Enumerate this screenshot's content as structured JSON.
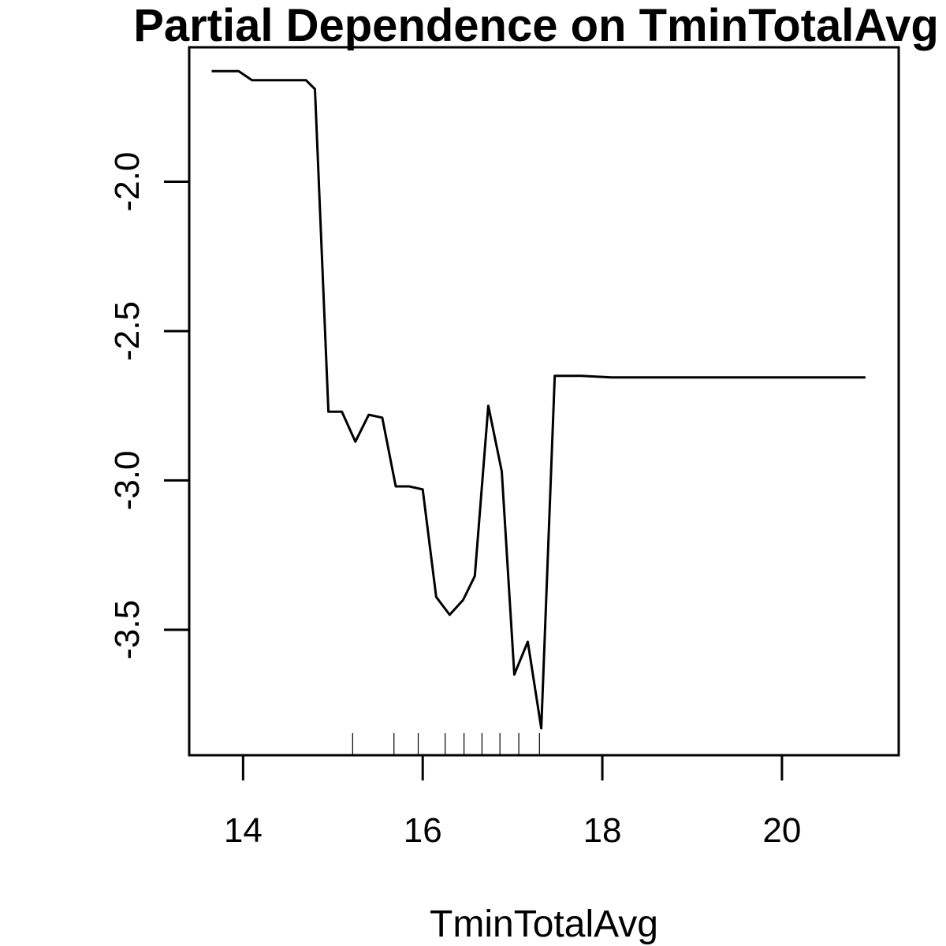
{
  "chart_data": {
    "type": "line",
    "title": "Partial Dependence on TminTotalAvg",
    "xlabel": "TminTotalAvg",
    "ylabel": "",
    "xlim": [
      13.4,
      21.3
    ],
    "ylim": [
      -3.92,
      -1.55
    ],
    "x_ticks": [
      14,
      16,
      18,
      20
    ],
    "x_tick_labels": [
      "14",
      "16",
      "18",
      "20"
    ],
    "y_ticks": [
      -2.0,
      -2.5,
      -3.0,
      -3.5
    ],
    "y_tick_labels": [
      "-2.0",
      "-2.5",
      "-3.0",
      "-3.5"
    ],
    "grid": false,
    "legend": "none",
    "line_color": "#000000",
    "series": [
      {
        "x": [
          13.65,
          13.95,
          14.1,
          14.2,
          14.35,
          14.5,
          14.65,
          14.7,
          14.8,
          14.95,
          15.1,
          15.25,
          15.4,
          15.55,
          15.7,
          15.85,
          16.0,
          16.15,
          16.3,
          16.45,
          16.58,
          16.73,
          16.88,
          17.02,
          17.17,
          17.32,
          17.47,
          17.62,
          17.77,
          18.1,
          19.0,
          20.0,
          20.93
        ],
        "y": [
          -1.63,
          -1.63,
          -1.66,
          -1.66,
          -1.66,
          -1.66,
          -1.66,
          -1.66,
          -1.69,
          -2.77,
          -2.77,
          -2.87,
          -2.78,
          -2.79,
          -3.02,
          -3.02,
          -3.03,
          -3.39,
          -3.45,
          -3.4,
          -3.32,
          -2.75,
          -2.97,
          -3.65,
          -3.54,
          -3.83,
          -2.65,
          -2.65,
          -2.65,
          -2.655,
          -2.655,
          -2.655,
          -2.655
        ]
      }
    ],
    "rug": [
      15.22,
      15.68,
      15.95,
      16.25,
      16.46,
      16.66,
      16.86,
      17.07,
      17.3
    ]
  }
}
